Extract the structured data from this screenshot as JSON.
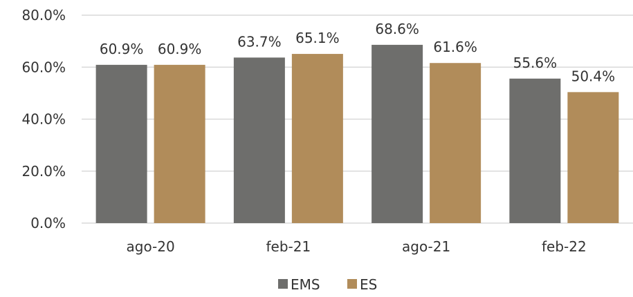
{
  "chart_data": {
    "type": "bar",
    "categories": [
      "ago-20",
      "feb-21",
      "ago-21",
      "feb-22"
    ],
    "series": [
      {
        "name": "EMS",
        "values": [
          60.9,
          63.7,
          68.6,
          55.6
        ],
        "color": "#6e6e6c"
      },
      {
        "name": "ES",
        "values": [
          60.9,
          65.1,
          61.6,
          50.4
        ],
        "color": "#b18c5a"
      }
    ],
    "data_labels": [
      [
        "60.9%",
        "63.7%",
        "68.6%",
        "55.6%"
      ],
      [
        "60.9%",
        "65.1%",
        "61.6%",
        "50.4%"
      ]
    ],
    "y_ticks": [
      "0.0%",
      "20.0%",
      "40.0%",
      "60.0%",
      "80.0%"
    ],
    "ylim": [
      0,
      80
    ],
    "grid": true,
    "gridline_color": "#d9d9d9",
    "legend_position": "bottom-center",
    "title": "",
    "xlabel": "",
    "ylabel": ""
  }
}
